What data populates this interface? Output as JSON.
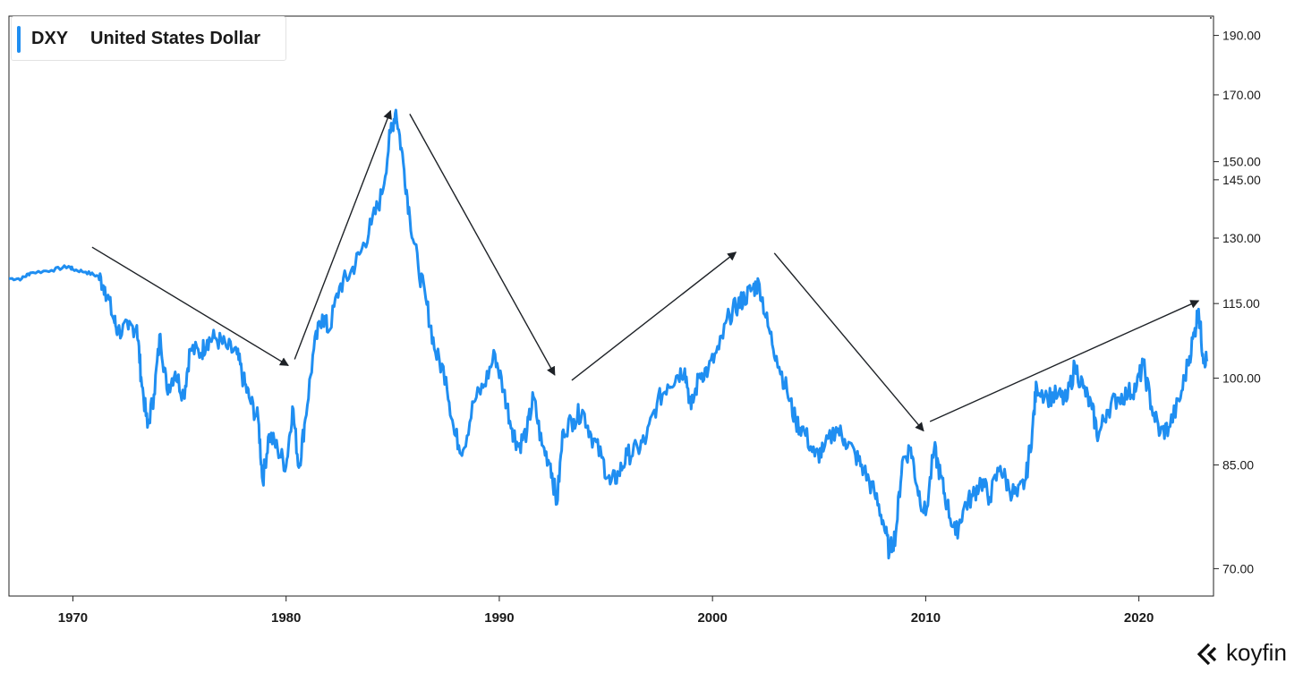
{
  "legend": {
    "ticker": "DXY",
    "name": "United States Dollar",
    "color": "#1f8ef1"
  },
  "brand": {
    "text": "koyfin",
    "icon": "koyfin-chevron-icon"
  },
  "chart_data": {
    "type": "line",
    "title": "",
    "xlabel": "",
    "ylabel": "",
    "log_scale": true,
    "xlim": [
      1967.0,
      2023.5
    ],
    "ylim": [
      66.5,
      197
    ],
    "grid": false,
    "legend_position": "top-left",
    "series_color": "#1f8ef1",
    "y_ticks": [
      {
        "value": 190,
        "label": "190.00"
      },
      {
        "value": 170,
        "label": "170.00"
      },
      {
        "value": 150,
        "label": "150.00"
      },
      {
        "value": 145,
        "label": "145.00"
      },
      {
        "value": 130,
        "label": "130.00"
      },
      {
        "value": 115,
        "label": "115.00"
      },
      {
        "value": 100,
        "label": "100.00"
      },
      {
        "value": 85,
        "label": "85.00"
      },
      {
        "value": 70,
        "label": "70.00"
      }
    ],
    "x_ticks": [
      {
        "value": 1970,
        "label": "1970"
      },
      {
        "value": 1980,
        "label": "1980"
      },
      {
        "value": 1990,
        "label": "1990"
      },
      {
        "value": 2000,
        "label": "2000"
      },
      {
        "value": 2010,
        "label": "2010"
      },
      {
        "value": 2020,
        "label": "2020"
      }
    ],
    "series": [
      {
        "name": "DXY",
        "points": [
          [
            1967.0,
            120.5
          ],
          [
            1967.6,
            120.5
          ],
          [
            1968.0,
            121.8
          ],
          [
            1969.0,
            122.4
          ],
          [
            1969.8,
            123.3
          ],
          [
            1970.0,
            122.6
          ],
          [
            1970.6,
            122.0
          ],
          [
            1971.2,
            121.0
          ],
          [
            1971.5,
            118.6
          ],
          [
            1971.9,
            111.8
          ],
          [
            1972.1,
            109.3
          ],
          [
            1972.6,
            109.6
          ],
          [
            1973.0,
            110.4
          ],
          [
            1973.2,
            100.2
          ],
          [
            1973.5,
            91.2
          ],
          [
            1973.8,
            97.0
          ],
          [
            1974.1,
            108.6
          ],
          [
            1974.4,
            98.0
          ],
          [
            1974.8,
            101.2
          ],
          [
            1975.2,
            96.8
          ],
          [
            1975.5,
            105.6
          ],
          [
            1976.0,
            104.8
          ],
          [
            1976.3,
            107.4
          ],
          [
            1976.7,
            107.8
          ],
          [
            1977.2,
            106.0
          ],
          [
            1977.7,
            104.6
          ],
          [
            1978.0,
            99.6
          ],
          [
            1978.3,
            96.0
          ],
          [
            1978.7,
            92.4
          ],
          [
            1978.9,
            82.5
          ],
          [
            1979.2,
            90.0
          ],
          [
            1979.6,
            87.6
          ],
          [
            1980.0,
            84.8
          ],
          [
            1980.3,
            94.8
          ],
          [
            1980.6,
            84.6
          ],
          [
            1980.9,
            92.6
          ],
          [
            1981.3,
            105.6
          ],
          [
            1981.7,
            112.6
          ],
          [
            1982.0,
            109.2
          ],
          [
            1982.5,
            118.6
          ],
          [
            1983.0,
            121.6
          ],
          [
            1983.5,
            126.6
          ],
          [
            1984.0,
            133.4
          ],
          [
            1984.5,
            141.2
          ],
          [
            1984.9,
            158.4
          ],
          [
            1985.15,
            165.2
          ],
          [
            1985.5,
            149.6
          ],
          [
            1985.8,
            135.4
          ],
          [
            1986.2,
            123.2
          ],
          [
            1986.6,
            114.8
          ],
          [
            1987.0,
            105.0
          ],
          [
            1987.5,
            100.2
          ],
          [
            1987.9,
            90.0
          ],
          [
            1988.3,
            87.4
          ],
          [
            1988.8,
            95.6
          ],
          [
            1989.3,
            98.8
          ],
          [
            1989.8,
            104.6
          ],
          [
            1990.2,
            97.8
          ],
          [
            1990.6,
            91.0
          ],
          [
            1990.9,
            88.0
          ],
          [
            1991.3,
            90.6
          ],
          [
            1991.6,
            96.6
          ],
          [
            1992.0,
            88.2
          ],
          [
            1992.4,
            85.2
          ],
          [
            1992.7,
            79.0
          ],
          [
            1993.0,
            90.8
          ],
          [
            1993.5,
            92.6
          ],
          [
            1993.9,
            94.2
          ],
          [
            1994.3,
            90.0
          ],
          [
            1994.8,
            86.2
          ],
          [
            1995.2,
            82.0
          ],
          [
            1995.6,
            83.6
          ],
          [
            1996.0,
            86.6
          ],
          [
            1996.5,
            87.6
          ],
          [
            1996.9,
            89.4
          ],
          [
            1997.4,
            95.4
          ],
          [
            1997.9,
            98.8
          ],
          [
            1998.3,
            100.4
          ],
          [
            1998.7,
            101.8
          ],
          [
            1999.0,
            94.4
          ],
          [
            1999.4,
            100.8
          ],
          [
            1999.8,
            101.6
          ],
          [
            2000.3,
            105.6
          ],
          [
            2000.8,
            112.6
          ],
          [
            2001.2,
            114.8
          ],
          [
            2001.5,
            116.2
          ],
          [
            2001.9,
            118.4
          ],
          [
            2002.2,
            119.2
          ],
          [
            2002.6,
            110.2
          ],
          [
            2003.0,
            104.2
          ],
          [
            2003.5,
            97.6
          ],
          [
            2003.9,
            92.2
          ],
          [
            2004.3,
            90.6
          ],
          [
            2004.8,
            86.4
          ],
          [
            2005.2,
            87.2
          ],
          [
            2005.8,
            91.2
          ],
          [
            2006.2,
            89.2
          ],
          [
            2006.7,
            86.6
          ],
          [
            2007.1,
            84.2
          ],
          [
            2007.6,
            80.6
          ],
          [
            2008.0,
            76.6
          ],
          [
            2008.3,
            72.2
          ],
          [
            2008.6,
            74.8
          ],
          [
            2008.9,
            85.6
          ],
          [
            2009.3,
            87.8
          ],
          [
            2009.6,
            81.6
          ],
          [
            2010.0,
            77.4
          ],
          [
            2010.4,
            87.6
          ],
          [
            2010.7,
            83.2
          ],
          [
            2011.0,
            79.0
          ],
          [
            2011.4,
            74.6
          ],
          [
            2011.8,
            78.6
          ],
          [
            2012.2,
            80.2
          ],
          [
            2012.6,
            82.6
          ],
          [
            2013.0,
            80.0
          ],
          [
            2013.5,
            84.8
          ],
          [
            2013.9,
            81.4
          ],
          [
            2014.3,
            80.2
          ],
          [
            2014.7,
            82.8
          ],
          [
            2015.0,
            90.6
          ],
          [
            2015.2,
            98.8
          ],
          [
            2015.7,
            96.6
          ],
          [
            2016.2,
            96.8
          ],
          [
            2016.6,
            95.8
          ],
          [
            2017.0,
            102.4
          ],
          [
            2017.4,
            98.2
          ],
          [
            2017.8,
            94.4
          ],
          [
            2018.1,
            89.6
          ],
          [
            2018.5,
            94.2
          ],
          [
            2019.0,
            96.4
          ],
          [
            2019.5,
            97.2
          ],
          [
            2019.9,
            98.6
          ],
          [
            2020.2,
            102.6
          ],
          [
            2020.6,
            94.8
          ],
          [
            2021.0,
            90.2
          ],
          [
            2021.4,
            91.2
          ],
          [
            2021.9,
            95.8
          ],
          [
            2022.3,
            102.8
          ],
          [
            2022.6,
            108.8
          ],
          [
            2022.8,
            113.8
          ],
          [
            2023.0,
            104.6
          ],
          [
            2023.2,
            103.2
          ]
        ]
      }
    ],
    "annotations": [
      {
        "type": "arrow",
        "from": [
          1970.9,
          127.8
        ],
        "to": [
          1980.1,
          102.4
        ]
      },
      {
        "type": "arrow",
        "from": [
          1980.4,
          103.6
        ],
        "to": [
          1984.9,
          165.0
        ]
      },
      {
        "type": "arrow",
        "from": [
          1985.8,
          164.0
        ],
        "to": [
          1992.6,
          100.6
        ]
      },
      {
        "type": "arrow",
        "from": [
          1993.4,
          99.6
        ],
        "to": [
          2001.1,
          126.6
        ]
      },
      {
        "type": "arrow",
        "from": [
          2002.9,
          126.4
        ],
        "to": [
          2009.9,
          90.6
        ]
      },
      {
        "type": "arrow",
        "from": [
          2010.2,
          92.2
        ],
        "to": [
          2022.8,
          115.6
        ]
      }
    ]
  }
}
